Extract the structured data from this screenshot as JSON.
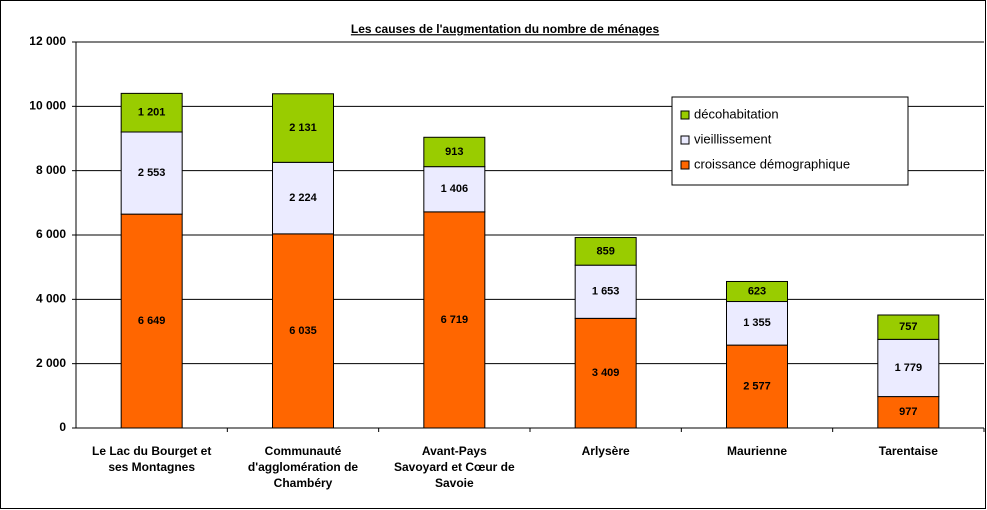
{
  "chart_data": {
    "type": "stacked_bar",
    "title": "Les causes de l'augmentation du nombre de ménages",
    "categories": [
      "Le Lac du Bourget et\nses Montagnes",
      "Communauté\nd'agglomération de\nChambéry",
      "Avant-Pays\nSavoyard et Cœur de\nSavoie",
      "Arlysère",
      "Maurienne",
      "Tarentaise"
    ],
    "series": [
      {
        "name": "croissance démographique",
        "color": "#ff6600",
        "values": [
          6649,
          6035,
          6719,
          3409,
          2577,
          977
        ],
        "value_labels": [
          "6 649",
          "6 035",
          "6 719",
          "3 409",
          "2 577",
          "977"
        ]
      },
      {
        "name": "vieillissement",
        "color": "#ebebff",
        "values": [
          2553,
          2224,
          1406,
          1653,
          1355,
          1779
        ],
        "value_labels": [
          "2 553",
          "2 224",
          "1 406",
          "1 653",
          "1 355",
          "1 779"
        ]
      },
      {
        "name": "décohabitation",
        "color": "#99cc00",
        "values": [
          1201,
          2131,
          913,
          859,
          623,
          757
        ],
        "value_labels": [
          "1 201",
          "2 131",
          "913",
          "859",
          "623",
          "757"
        ]
      }
    ],
    "ylim": [
      0,
      12000
    ],
    "yticks": [
      0,
      {
        "value": 2000,
        "label": "2 000"
      },
      {
        "value": 4000,
        "label": "4 000"
      },
      {
        "value": 6000,
        "label": "6 000"
      },
      {
        "value": 8000,
        "label": "8 000"
      },
      {
        "value": 10000,
        "label": "10 000"
      },
      {
        "value": 12000,
        "label": "12 000"
      }
    ],
    "grid": true,
    "legend": "upper right"
  }
}
